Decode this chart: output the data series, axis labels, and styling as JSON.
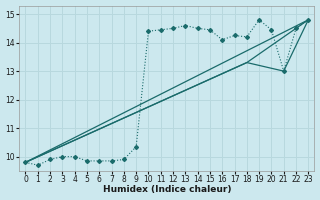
{
  "bg_color": "#cce8ee",
  "grid_color": "#b8d8de",
  "line_color": "#1a6b6b",
  "xlabel": "Humidex (Indice chaleur)",
  "xlim": [
    -0.5,
    23.5
  ],
  "ylim": [
    9.5,
    15.3
  ],
  "yticks": [
    10,
    11,
    12,
    13,
    14,
    15
  ],
  "xticks": [
    0,
    1,
    2,
    3,
    4,
    5,
    6,
    7,
    8,
    9,
    10,
    11,
    12,
    13,
    14,
    15,
    16,
    17,
    18,
    19,
    20,
    21,
    22,
    23
  ],
  "series1_x": [
    0,
    1,
    2,
    3,
    4,
    5,
    6,
    7,
    8,
    9,
    10,
    11,
    12,
    13,
    14,
    15,
    16,
    17,
    18,
    19,
    20,
    21,
    22,
    23
  ],
  "series1_y": [
    9.8,
    9.7,
    9.9,
    10.0,
    10.0,
    9.85,
    9.85,
    9.85,
    9.9,
    10.35,
    14.4,
    14.45,
    14.5,
    14.6,
    14.5,
    14.45,
    14.1,
    14.25,
    14.2,
    14.8,
    14.45,
    13.0,
    14.5,
    14.8
  ],
  "series2_x": [
    0,
    23
  ],
  "series2_y": [
    9.8,
    14.8
  ],
  "series3_x": [
    0,
    18,
    21,
    23
  ],
  "series3_y": [
    9.8,
    13.3,
    13.0,
    14.8
  ],
  "series4_x": [
    0,
    18,
    23
  ],
  "series4_y": [
    9.8,
    13.3,
    14.8
  ]
}
